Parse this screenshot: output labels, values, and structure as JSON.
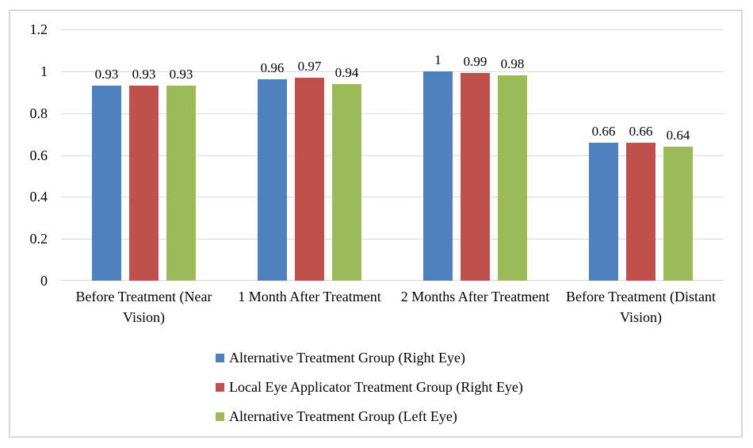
{
  "chart_data": {
    "type": "bar",
    "title": "",
    "xlabel": "",
    "ylabel": "",
    "categories": [
      "Before Treatment (Near Vision)",
      "1 Month After Treatment",
      "2 Months After Treatment",
      "Before Treatment (Distant Vision)"
    ],
    "series": [
      {
        "name": "Alternative Treatment Group (Right Eye)",
        "color": "#4F81BD",
        "values": [
          0.93,
          0.96,
          1,
          0.66
        ],
        "labels": [
          "0.93",
          "0.96",
          "1",
          "0.66"
        ]
      },
      {
        "name": "Local Eye Applicator Treatment Group (Right Eye)",
        "color": "#C0504D",
        "values": [
          0.93,
          0.97,
          0.99,
          0.66
        ],
        "labels": [
          "0.93",
          "0.97",
          "0.99",
          "0.66"
        ]
      },
      {
        "name": "Alternative Treatment Group (Left Eye)",
        "color": "#9BBB59",
        "values": [
          0.93,
          0.94,
          0.98,
          0.64
        ],
        "labels": [
          "0.93",
          "0.94",
          "0.98",
          "0.64"
        ]
      }
    ],
    "y_axis": {
      "min": 0,
      "max": 1.2,
      "step": 0.2,
      "tick_labels": [
        "0",
        "0.2",
        "0.4",
        "0.6",
        "0.8",
        "1",
        "1.2"
      ]
    },
    "grid": true,
    "legend_position": "bottom",
    "colors": {
      "gridline": "#D9D9D9",
      "border": "#D8D8D8",
      "text": "#000000",
      "background": "#FFFFFF"
    }
  }
}
